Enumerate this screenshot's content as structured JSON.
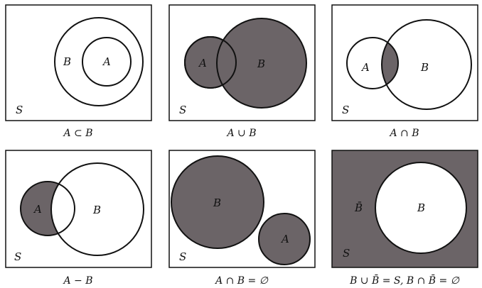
{
  "colors": {
    "shade": "#6b6467",
    "ink": "#111111",
    "paper": "#ffffff"
  },
  "panels": [
    {
      "caption": "A ⊂ B",
      "labels": {
        "S": "S",
        "A": "A",
        "B": "B"
      }
    },
    {
      "caption": "A ∪ B",
      "labels": {
        "S": "S",
        "A": "A",
        "B": "B"
      }
    },
    {
      "caption": "A ∩ B",
      "labels": {
        "S": "S",
        "A": "A",
        "B": "B"
      }
    },
    {
      "caption": "A − B",
      "labels": {
        "S": "S",
        "A": "A",
        "B": "B"
      }
    },
    {
      "caption": "A ∩ B = ∅",
      "labels": {
        "S": "S",
        "A": "A",
        "B": "B"
      }
    },
    {
      "caption": "B ∪ B̄ = S, B ∩ B̄ = ∅",
      "labels": {
        "S": "S",
        "B": "B",
        "Bbar": "B̄"
      }
    }
  ]
}
